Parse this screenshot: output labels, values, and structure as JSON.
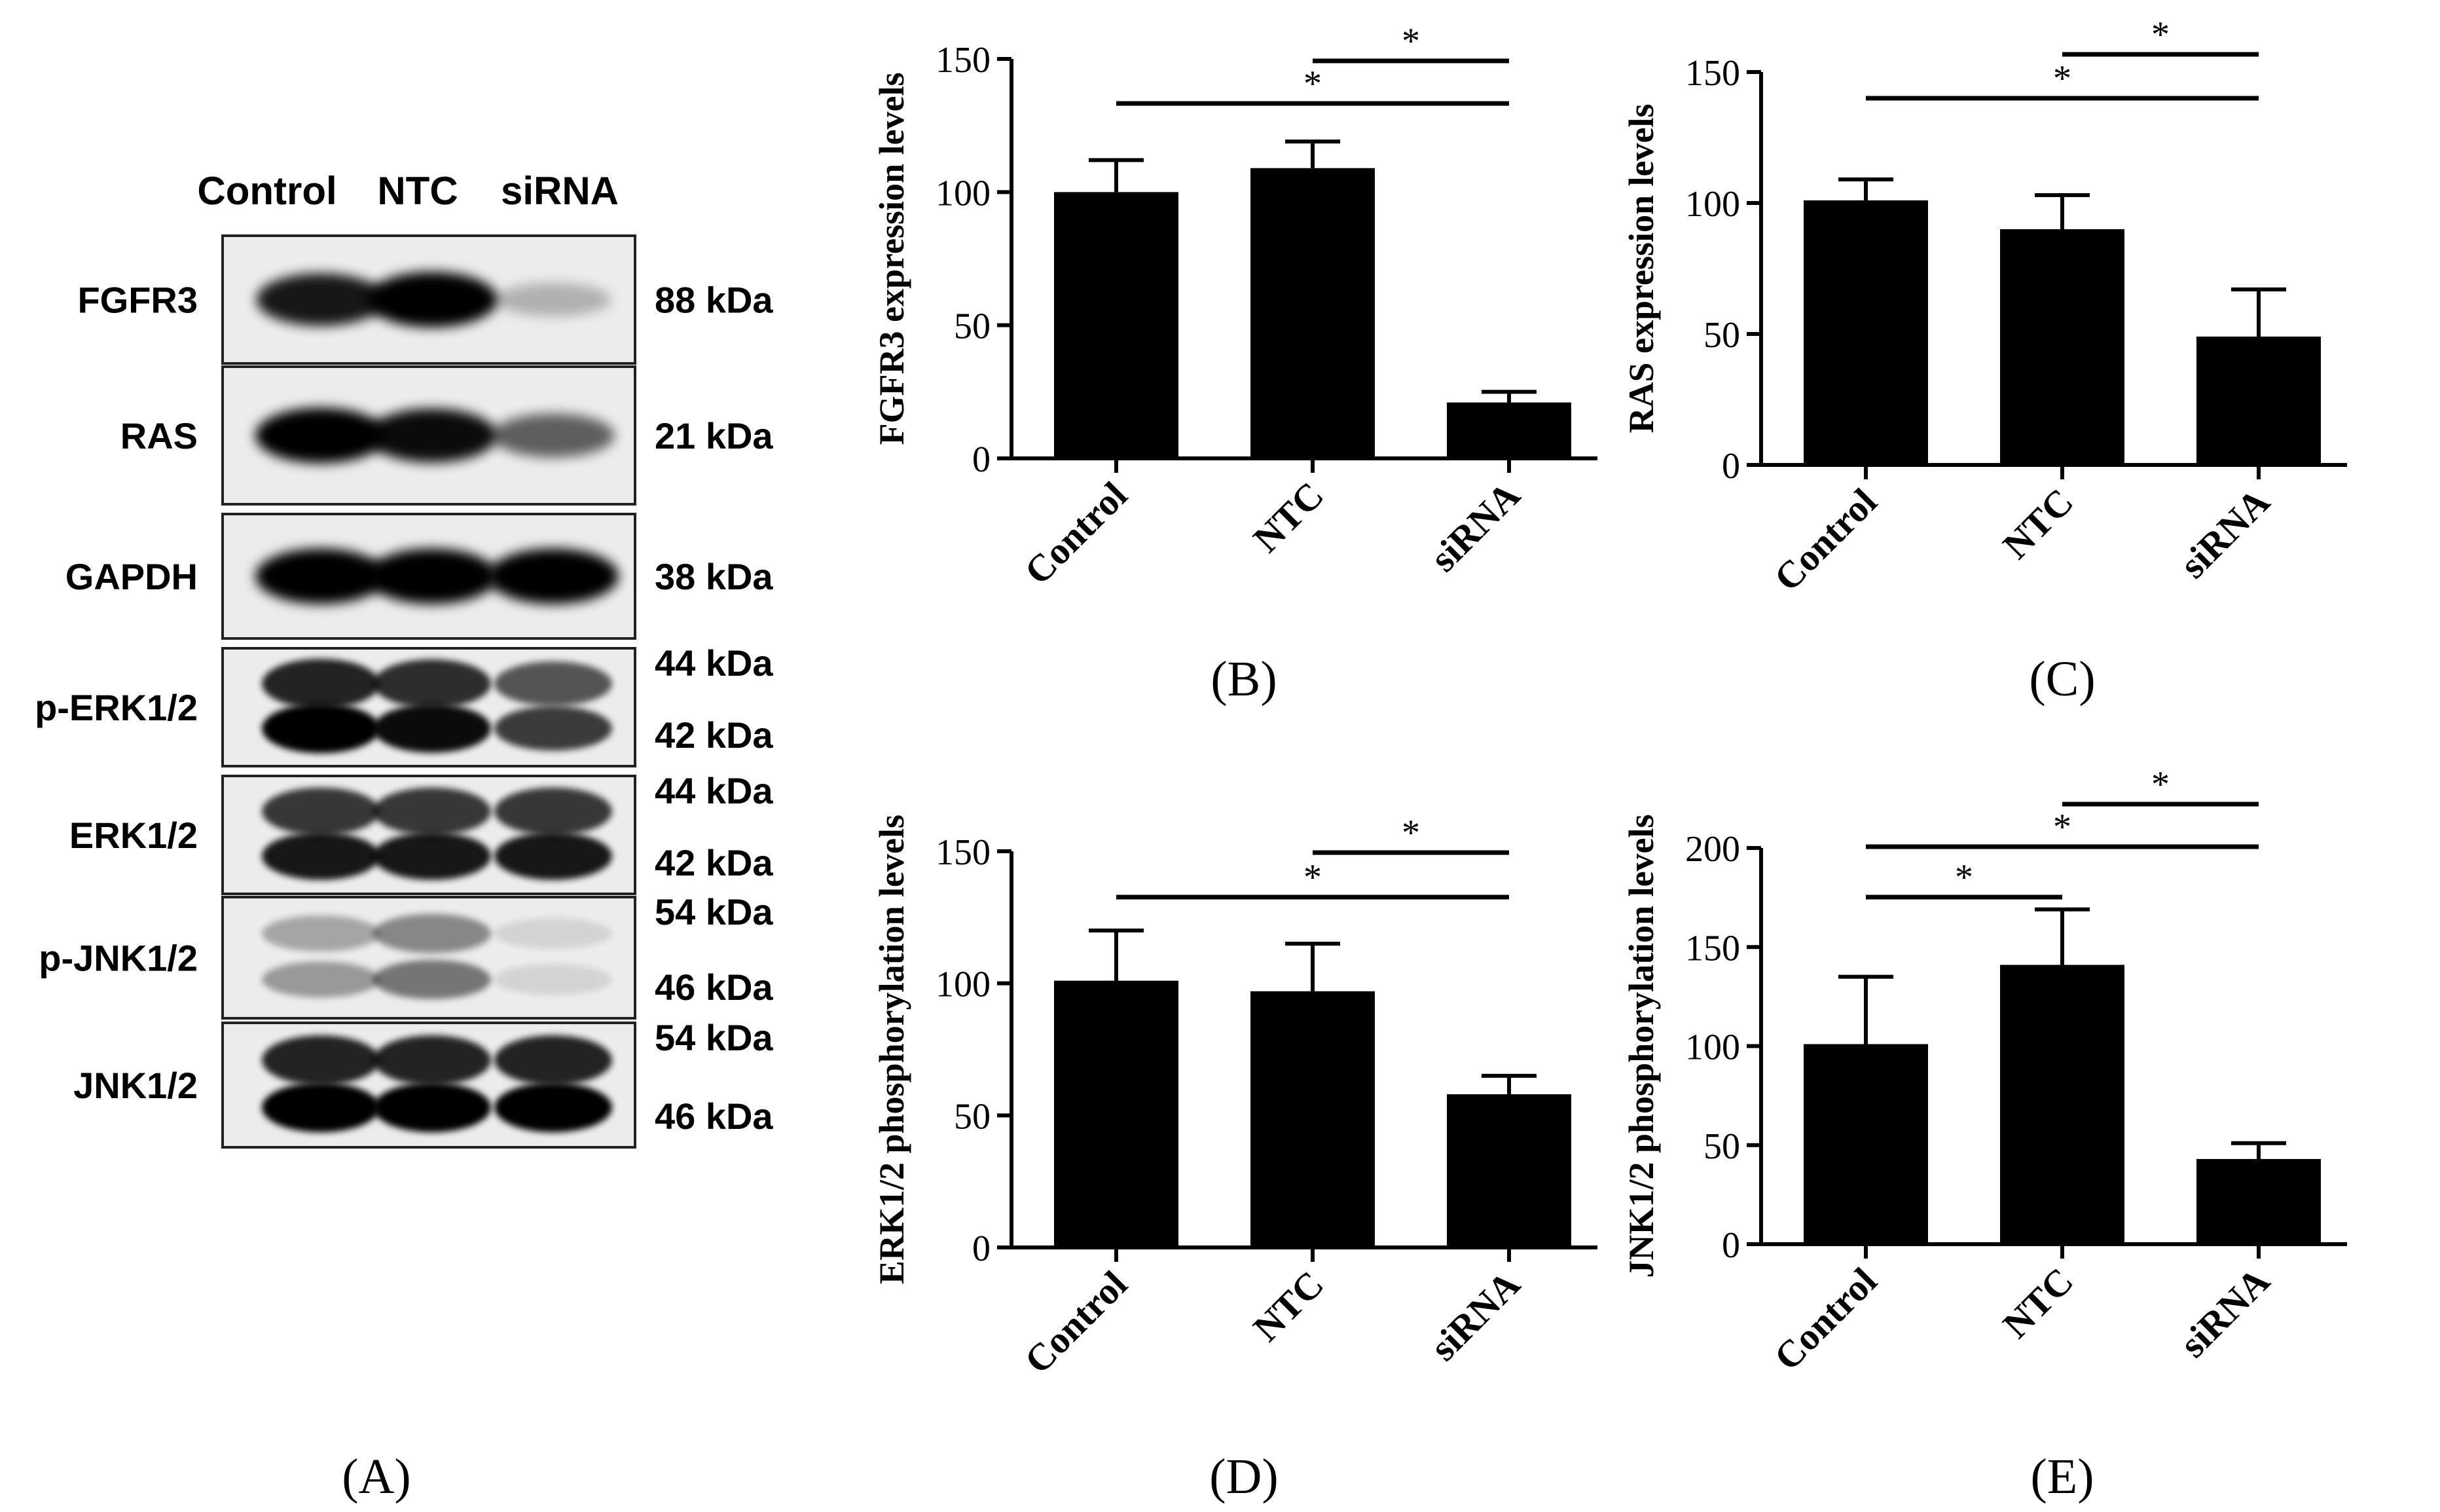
{
  "blot": {
    "lanes": [
      "Control",
      "NTC",
      "siRNA"
    ],
    "rows": [
      {
        "protein": "FGFR3",
        "sizes": [
          "88 kDa"
        ],
        "intensity": [
          0.9,
          1.0,
          0.25
        ]
      },
      {
        "protein": "RAS",
        "sizes": [
          "21 kDa"
        ],
        "intensity": [
          1.0,
          0.95,
          0.6
        ]
      },
      {
        "protein": "GAPDH",
        "sizes": [
          "38 kDa"
        ],
        "intensity": [
          1.0,
          1.0,
          1.0
        ]
      },
      {
        "protein": "p-ERK1/2",
        "sizes": [
          "44 kDa",
          "42 kDa"
        ],
        "intensity": [
          1.0,
          0.95,
          0.75
        ]
      },
      {
        "protein": "ERK1/2",
        "sizes": [
          "44 kDa",
          "42 kDa"
        ],
        "intensity": [
          0.9,
          0.9,
          0.9
        ]
      },
      {
        "protein": "p-JNK1/2",
        "sizes": [
          "54 kDa",
          "46 kDa"
        ],
        "intensity": [
          0.35,
          0.5,
          0.1
        ]
      },
      {
        "protein": "JNK1/2",
        "sizes": [
          "54 kDa",
          "46 kDa"
        ],
        "intensity": [
          1.0,
          1.0,
          1.0
        ]
      }
    ],
    "panel_label": "(A)"
  },
  "chart_data": [
    {
      "type": "bar",
      "panel": "(B)",
      "ylabel": "FGFR3 expression levels",
      "categories": [
        "Control",
        "NTC",
        "siRNA"
      ],
      "values": [
        100,
        109,
        21
      ],
      "errors": [
        12,
        10,
        4
      ],
      "ylim": [
        0,
        150
      ],
      "yticks": [
        "0",
        "50",
        "100",
        "150"
      ],
      "significance": [
        {
          "from": 0,
          "to": 2,
          "label": "*"
        },
        {
          "from": 1,
          "to": 2,
          "label": "*"
        }
      ]
    },
    {
      "type": "bar",
      "panel": "(C)",
      "ylabel": "RAS expression levels",
      "categories": [
        "Control",
        "NTC",
        "siRNA"
      ],
      "values": [
        101,
        90,
        49
      ],
      "errors": [
        8,
        13,
        18
      ],
      "ylim": [
        0,
        150
      ],
      "yticks": [
        "0",
        "50",
        "100",
        "150"
      ],
      "significance": [
        {
          "from": 0,
          "to": 2,
          "label": "*"
        },
        {
          "from": 1,
          "to": 2,
          "label": "*"
        }
      ]
    },
    {
      "type": "bar",
      "panel": "(D)",
      "ylabel": "ERK1/2 phosphorylation levels",
      "categories": [
        "Control",
        "NTC",
        "siRNA"
      ],
      "values": [
        101,
        97,
        58
      ],
      "errors": [
        19,
        18,
        7
      ],
      "ylim": [
        0,
        150
      ],
      "yticks": [
        "0",
        "50",
        "100",
        "150"
      ],
      "significance": [
        {
          "from": 0,
          "to": 2,
          "label": "*"
        },
        {
          "from": 1,
          "to": 2,
          "label": "*"
        }
      ]
    },
    {
      "type": "bar",
      "panel": "(E)",
      "ylabel": "JNK1/2 phosphorylation levels",
      "categories": [
        "Control",
        "NTC",
        "siRNA"
      ],
      "values": [
        101,
        141,
        43
      ],
      "errors": [
        34,
        28,
        8
      ],
      "ylim": [
        0,
        200
      ],
      "yticks": [
        "0",
        "50",
        "100",
        "150",
        "200"
      ],
      "significance": [
        {
          "from": 0,
          "to": 1,
          "label": "*"
        },
        {
          "from": 0,
          "to": 2,
          "label": "*"
        },
        {
          "from": 1,
          "to": 2,
          "label": "*"
        }
      ]
    }
  ]
}
